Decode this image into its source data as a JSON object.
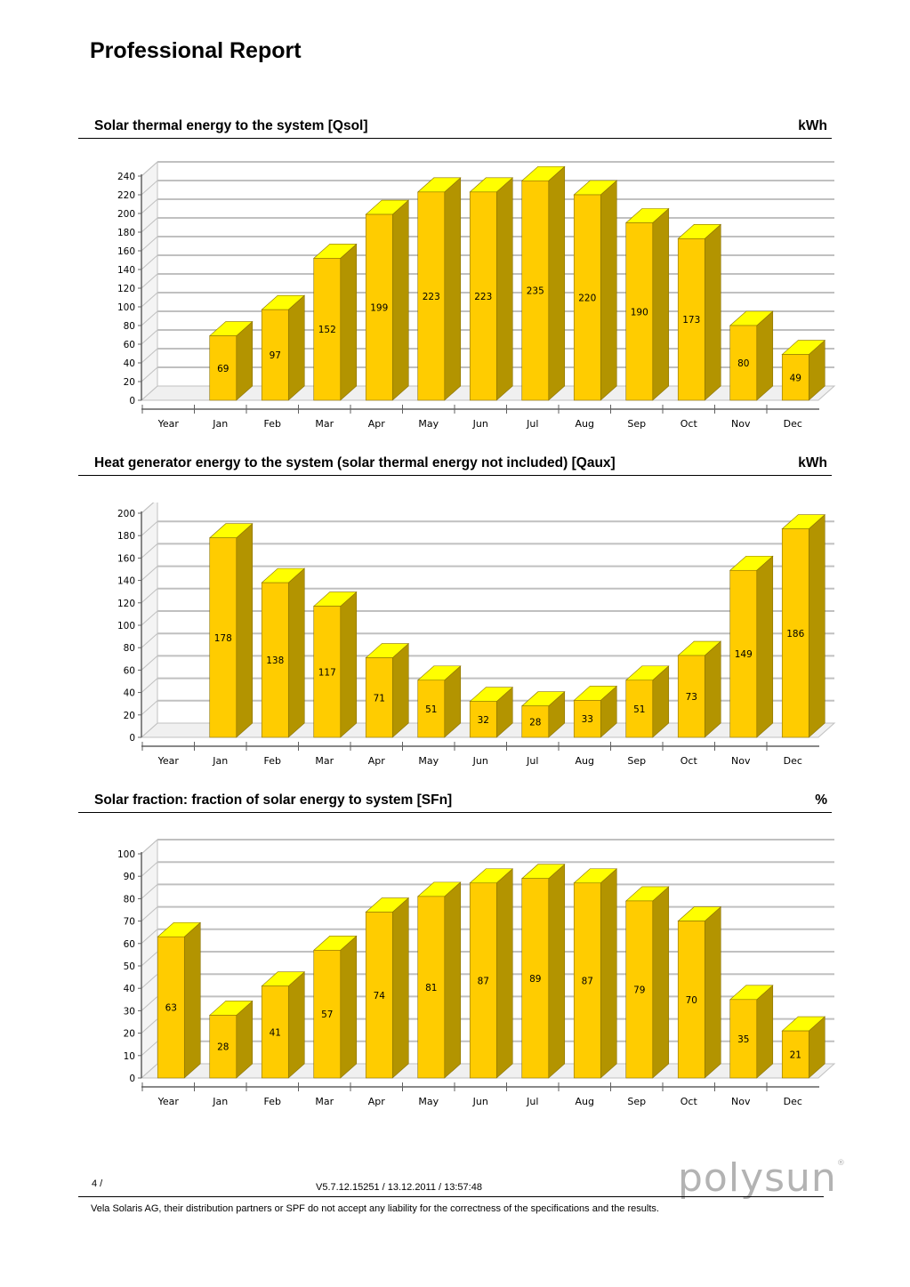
{
  "page_title": "Professional Report",
  "colors": {
    "bar_front": "#ffcc00",
    "bar_top": "#ffff00",
    "bar_side": "#b39400",
    "grid": "#c0c0c0",
    "axis": "#808080"
  },
  "sections": [
    {
      "title": "Solar thermal energy to the system [Qsol]",
      "unit": "kWh"
    },
    {
      "title": "Heat generator energy to the system (solar thermal energy not included) [Qaux]",
      "unit": "kWh"
    },
    {
      "title": "Solar fraction: fraction of solar energy to system [SFn]",
      "unit": "%"
    }
  ],
  "chart_data": [
    {
      "type": "bar",
      "title": "Solar thermal energy to the system [Qsol]",
      "ylabel": "kWh",
      "categories": [
        "Year",
        "Jan",
        "Feb",
        "Mar",
        "Apr",
        "May",
        "Jun",
        "Jul",
        "Aug",
        "Sep",
        "Oct",
        "Nov",
        "Dec"
      ],
      "values": [
        null,
        69,
        97,
        152,
        199,
        223,
        223,
        235,
        220,
        190,
        173,
        80,
        49
      ],
      "ylim": [
        0,
        240
      ],
      "yticks": [
        0,
        20,
        40,
        60,
        80,
        100,
        120,
        140,
        160,
        180,
        200,
        220,
        240
      ],
      "grid": true
    },
    {
      "type": "bar",
      "title": "Heat generator energy to the system (solar thermal energy not included) [Qaux]",
      "ylabel": "kWh",
      "categories": [
        "Year",
        "Jan",
        "Feb",
        "Mar",
        "Apr",
        "May",
        "Jun",
        "Jul",
        "Aug",
        "Sep",
        "Oct",
        "Nov",
        "Dec"
      ],
      "values": [
        null,
        178,
        138,
        117,
        71,
        51,
        32,
        28,
        33,
        51,
        73,
        149,
        186
      ],
      "ylim": [
        0,
        200
      ],
      "yticks": [
        0,
        20,
        40,
        60,
        80,
        100,
        120,
        140,
        160,
        180,
        200
      ],
      "grid": true
    },
    {
      "type": "bar",
      "title": "Solar fraction: fraction of solar energy to system [SFn]",
      "ylabel": "%",
      "categories": [
        "Year",
        "Jan",
        "Feb",
        "Mar",
        "Apr",
        "May",
        "Jun",
        "Jul",
        "Aug",
        "Sep",
        "Oct",
        "Nov",
        "Dec"
      ],
      "values": [
        63,
        28,
        41,
        57,
        74,
        81,
        87,
        89,
        87,
        79,
        70,
        35,
        21
      ],
      "ylim": [
        0,
        100
      ],
      "yticks": [
        0,
        10,
        20,
        30,
        40,
        50,
        60,
        70,
        80,
        90,
        100
      ],
      "grid": true
    }
  ],
  "footer": {
    "page": "4   /",
    "version": "V5.7.12.15251 / 13.12.2011 / 13:57:48",
    "logo_text": "polysun",
    "logo_mark": "®",
    "disclaimer": "Vela Solaris AG, their distribution partners or SPF do not accept any liability for the correctness of the specifications and the results."
  }
}
